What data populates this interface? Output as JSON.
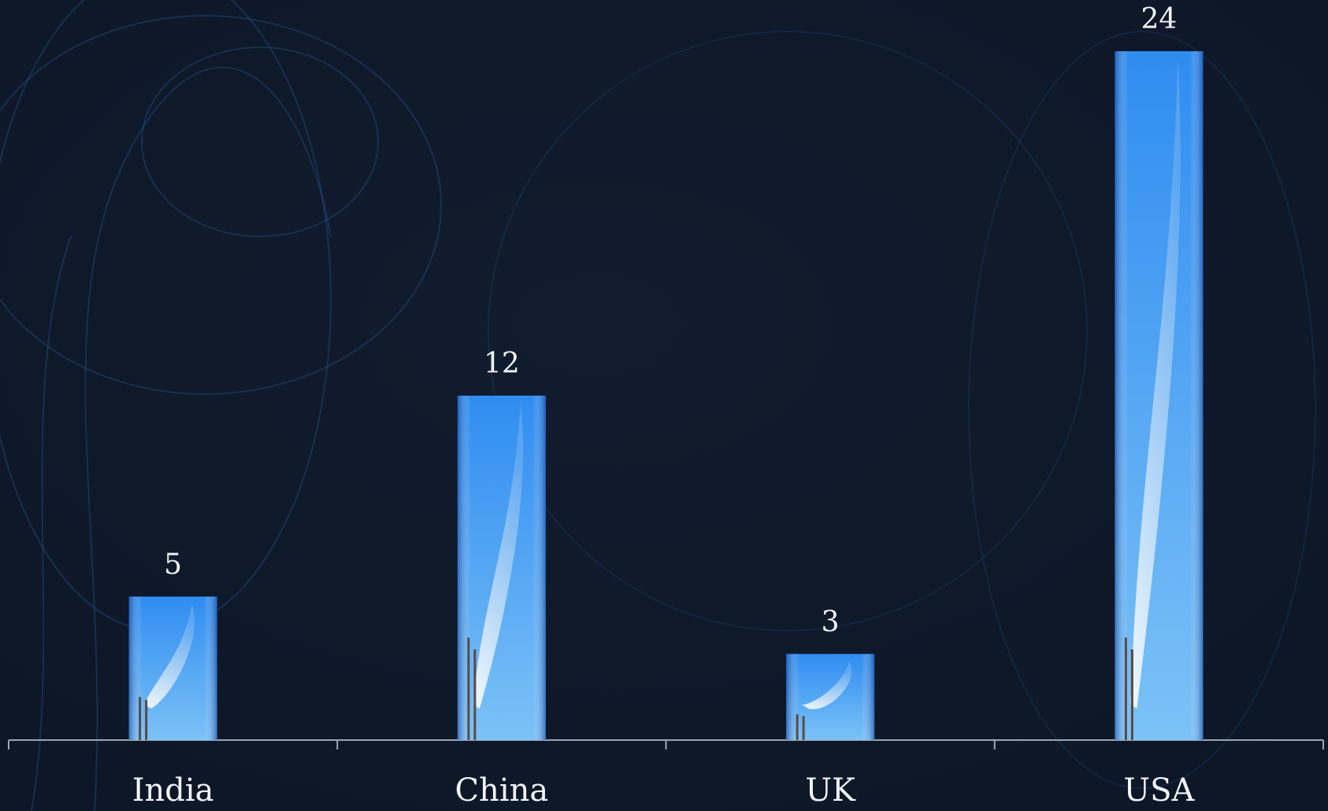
{
  "chart_data": {
    "type": "bar",
    "categories": [
      "India",
      "China",
      "UK",
      "USA"
    ],
    "values": [
      5,
      12,
      3,
      24
    ],
    "color": "#2f8cf0"
  }
}
